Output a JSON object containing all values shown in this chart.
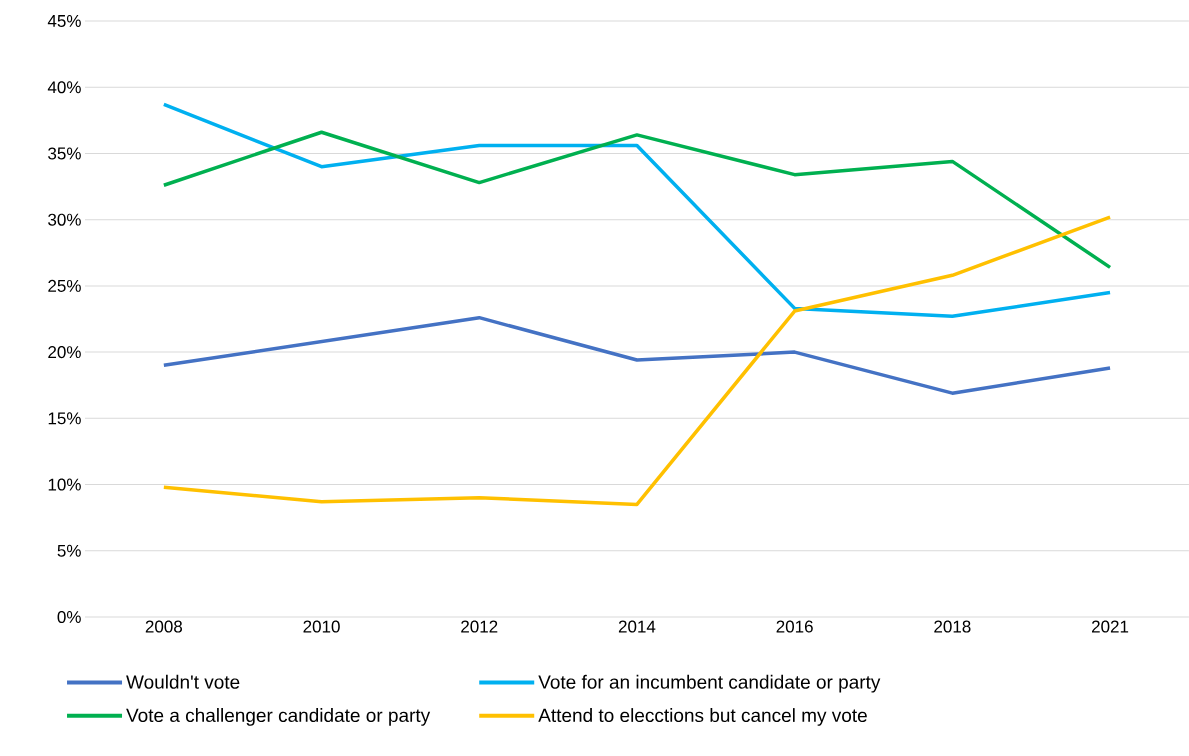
{
  "chart_data": {
    "type": "line",
    "categories": [
      "2008",
      "2010",
      "2012",
      "2014",
      "2016",
      "2018",
      "2021"
    ],
    "series": [
      {
        "name": "Wouldn't vote",
        "color": "#4472c4",
        "values": [
          19.0,
          20.8,
          22.6,
          19.4,
          20.0,
          16.9,
          18.8
        ]
      },
      {
        "name": "Vote for an incumbent candidate or party",
        "color": "#00b0f0",
        "values": [
          38.7,
          34.0,
          35.6,
          35.6,
          23.3,
          22.7,
          24.5
        ]
      },
      {
        "name": "Vote a challenger candidate or party",
        "color": "#00b050",
        "values": [
          32.6,
          36.6,
          32.8,
          36.4,
          33.4,
          34.4,
          26.4
        ]
      },
      {
        "name": "Attend to elecctions but cancel my vote",
        "color": "#ffc000",
        "values": [
          9.8,
          8.7,
          9.0,
          8.5,
          23.1,
          25.8,
          30.2
        ]
      }
    ],
    "ylim": [
      0,
      45
    ],
    "yticks": [
      {
        "value": 0,
        "label": "0%"
      },
      {
        "value": 5,
        "label": "5%"
      },
      {
        "value": 10,
        "label": "10%"
      },
      {
        "value": 15,
        "label": "15%"
      },
      {
        "value": 20,
        "label": "20%"
      },
      {
        "value": 25,
        "label": "25%"
      },
      {
        "value": 30,
        "label": "30%"
      },
      {
        "value": 35,
        "label": "35%"
      },
      {
        "value": 40,
        "label": "40%"
      },
      {
        "value": 45,
        "label": "45%"
      }
    ],
    "grid": "y",
    "legend": "bottom",
    "marker": "none",
    "line_style": "solid"
  }
}
